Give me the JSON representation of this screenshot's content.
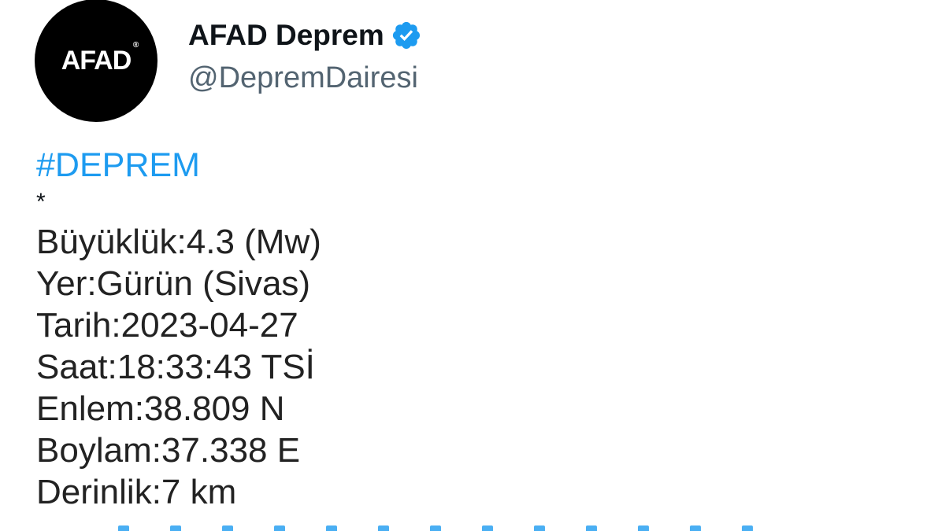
{
  "profile": {
    "avatar_text": "AFAD",
    "display_name": "AFAD Deprem",
    "verified_icon": "verified-badge-icon",
    "handle": "@DepremDairesi"
  },
  "tweet": {
    "hashtag": "#DEPREM",
    "separator": "*",
    "lines": [
      "Büyüklük:4.3 (Mw)",
      "Yer:Gürün (Sivas)",
      "Tarih:2023-04-27",
      "Saat:18:33:43 TSİ",
      "Enlem:38.809 N",
      "Boylam:37.338 E",
      "Derinlik:7 km"
    ]
  },
  "colors": {
    "link": "#1d9bf0",
    "handle": "#536471",
    "text": "#0f1419"
  }
}
